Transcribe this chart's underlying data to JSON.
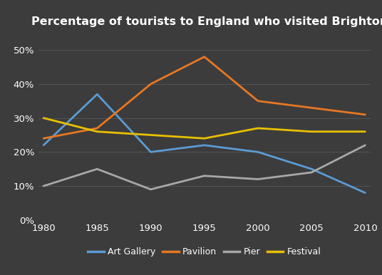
{
  "title": "Percentage of tourists to England who visited Brighton attractions",
  "years": [
    1980,
    1985,
    1990,
    1995,
    2000,
    2005,
    2010
  ],
  "series": {
    "Art Gallery": {
      "values": [
        22,
        37,
        20,
        22,
        20,
        15,
        8
      ],
      "color": "#5B9BD5"
    },
    "Pavilion": {
      "values": [
        24,
        27,
        40,
        48,
        35,
        33,
        31
      ],
      "color": "#E87722"
    },
    "Pier": {
      "values": [
        10,
        15,
        9,
        13,
        12,
        14,
        22
      ],
      "color": "#A8A8A8"
    },
    "Festival": {
      "values": [
        30,
        26,
        25,
        24,
        27,
        26,
        26
      ],
      "color": "#E8C000"
    }
  },
  "ylim": [
    0,
    55
  ],
  "yticks": [
    0,
    10,
    20,
    30,
    40,
    50
  ],
  "ytick_labels": [
    "0%",
    "10%",
    "20%",
    "30%",
    "40%",
    "50%"
  ],
  "background_color": "#3C3C3C",
  "grid_color": "#555555",
  "text_color": "#FFFFFF",
  "title_fontsize": 11.5,
  "axis_fontsize": 9.5,
  "legend_fontsize": 9,
  "linewidth": 2.0
}
